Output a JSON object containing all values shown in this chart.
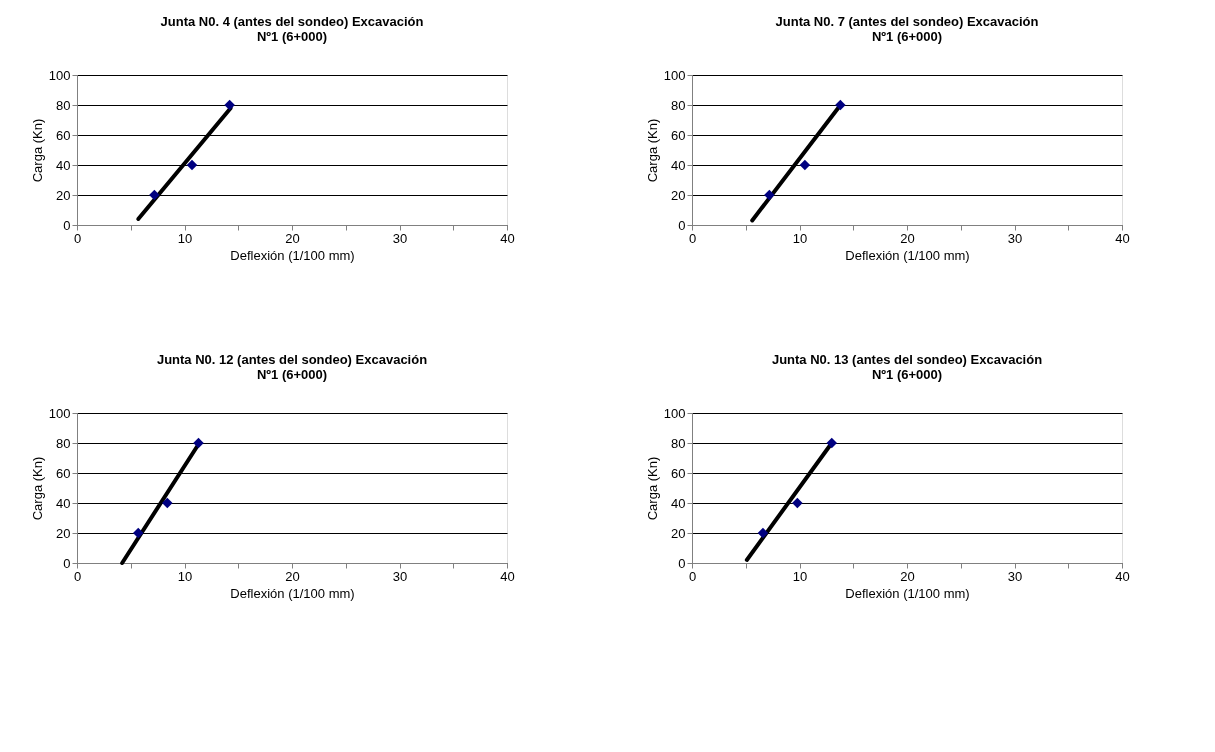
{
  "chart_data": [
    {
      "type": "scatter",
      "title": "Junta N0. 4 (antes del sondeo) Excavación Nº1 (6+000)",
      "xlabel": "Deflexión (1/100 mm)",
      "ylabel": "Carga (Kn)",
      "xlim": [
        0,
        40
      ],
      "ylim": [
        0,
        100
      ],
      "xticks": [
        0,
        {
          "value": 5,
          "label": null
        },
        10,
        {
          "value": 15,
          "label": null
        },
        20,
        {
          "value": 25,
          "label": null
        },
        30,
        {
          "value": 35,
          "label": null
        },
        40
      ],
      "yticks": [
        0,
        20,
        40,
        60,
        80,
        100
      ],
      "grid": "y",
      "series": [
        {
          "marker": "diamond",
          "color": "#000080",
          "x": [
            7.2,
            10.7,
            14.2
          ],
          "values": [
            20,
            40,
            80
          ]
        },
        {
          "type": "line",
          "marker": "none",
          "color": "#000000",
          "x": [
            5.7,
            14.3
          ],
          "values": [
            4,
            78
          ]
        }
      ]
    },
    {
      "type": "scatter",
      "title": "Junta N0. 7 (antes del sondeo) Excavación Nº1 (6+000)",
      "xlabel": "Deflexión (1/100 mm)",
      "ylabel": "Carga (Kn)",
      "xlim": [
        0,
        40
      ],
      "ylim": [
        0,
        100
      ],
      "xticks": [
        0,
        {
          "value": 5,
          "label": null
        },
        10,
        {
          "value": 15,
          "label": null
        },
        20,
        {
          "value": 25,
          "label": null
        },
        30,
        {
          "value": 35,
          "label": null
        },
        40
      ],
      "yticks": [
        0,
        20,
        40,
        60,
        80,
        100
      ],
      "grid": "y",
      "series": [
        {
          "marker": "diamond",
          "color": "#000080",
          "x": [
            7.2,
            10.5,
            13.8
          ],
          "values": [
            20,
            40,
            80
          ]
        },
        {
          "type": "line",
          "marker": "none",
          "color": "#000000",
          "x": [
            5.6,
            13.6
          ],
          "values": [
            3,
            78
          ]
        }
      ]
    },
    {
      "type": "scatter",
      "title": "Junta N0. 12 (antes del sondeo) Excavación Nº1 (6+000)",
      "xlabel": "Deflexión (1/100 mm)",
      "ylabel": "Carga (Kn)",
      "xlim": [
        0,
        40
      ],
      "ylim": [
        0,
        100
      ],
      "xticks": [
        0,
        {
          "value": 5,
          "label": null
        },
        10,
        {
          "value": 15,
          "label": null
        },
        20,
        {
          "value": 25,
          "label": null
        },
        30,
        {
          "value": 35,
          "label": null
        },
        40
      ],
      "yticks": [
        0,
        20,
        40,
        60,
        80,
        100
      ],
      "grid": "y",
      "series": [
        {
          "marker": "diamond",
          "color": "#000080",
          "x": [
            5.7,
            8.4,
            11.3
          ],
          "values": [
            20,
            40,
            80
          ]
        },
        {
          "type": "line",
          "marker": "none",
          "color": "#000000",
          "x": [
            4.2,
            11.2
          ],
          "values": [
            0,
            78
          ]
        }
      ]
    },
    {
      "type": "scatter",
      "title": "Junta N0. 13 (antes del sondeo) Excavación Nº1 (6+000)",
      "xlabel": "Deflexión (1/100 mm)",
      "ylabel": "Carga (Kn)",
      "xlim": [
        0,
        40
      ],
      "ylim": [
        0,
        100
      ],
      "xticks": [
        0,
        {
          "value": 5,
          "label": null
        },
        10,
        {
          "value": 15,
          "label": null
        },
        20,
        {
          "value": 25,
          "label": null
        },
        30,
        {
          "value": 35,
          "label": null
        },
        40
      ],
      "yticks": [
        0,
        20,
        40,
        60,
        80,
        100
      ],
      "grid": "y",
      "series": [
        {
          "marker": "diamond",
          "color": "#000080",
          "x": [
            6.6,
            9.8,
            13.0
          ],
          "values": [
            20,
            40,
            80
          ]
        },
        {
          "type": "line",
          "marker": "none",
          "color": "#000000",
          "x": [
            5.1,
            12.9
          ],
          "values": [
            2,
            79
          ]
        }
      ]
    }
  ]
}
